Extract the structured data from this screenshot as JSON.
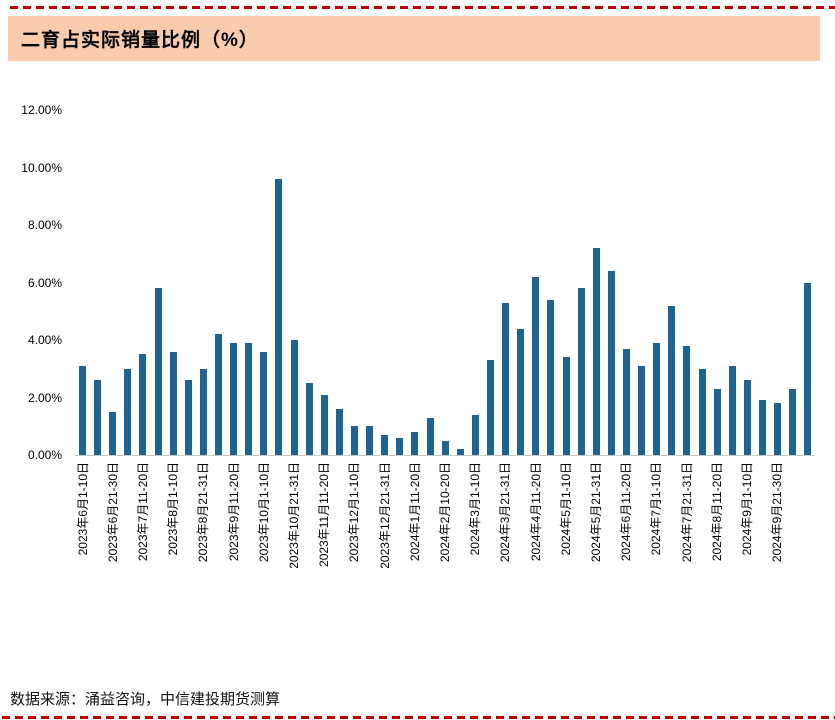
{
  "header": {
    "title": "二育占实际销量比例（%）"
  },
  "footer": {
    "source": "数据来源：涌益咨询，中信建投期货测算"
  },
  "colors": {
    "title_band": "#F8CBAD",
    "dashed_rule": "#C00000",
    "bar": "#1F6490"
  },
  "chart_data": {
    "type": "bar",
    "title": "二育占实际销量比例（%）",
    "xlabel": "",
    "ylabel": "",
    "y_unit": "percent",
    "ylim": [
      0,
      12
    ],
    "grid": false,
    "legend": false,
    "x_label_rotation_degrees": 90,
    "yticks": [
      {
        "value": 0,
        "label": "0.00%"
      },
      {
        "value": 2,
        "label": "2.00%"
      },
      {
        "value": 4,
        "label": "4.00%"
      },
      {
        "value": 6,
        "label": "6.00%"
      },
      {
        "value": 8,
        "label": "8.00%"
      },
      {
        "value": 10,
        "label": "10.00%"
      },
      {
        "value": 12,
        "label": "12.00%"
      }
    ],
    "x_labels": [
      "2023年6月1-10日",
      "",
      "2023年6月21-30日",
      "",
      "2023年7月11-20日",
      "",
      "2023年8月1-10日",
      "",
      "2023年8月21-31日",
      "",
      "2023年9月11-20日",
      "",
      "2023年10月1-10日",
      "",
      "2023年10月21-31日",
      "",
      "2023年11月11-20日",
      "",
      "2023年12月1-10日",
      "",
      "2023年12月21-31日",
      "",
      "2024年1月11-20日",
      "",
      "2024年2月10-20日",
      "",
      "2024年3月1-10日",
      "",
      "2024年3月21-31日",
      "",
      "2024年4月11-20日",
      "",
      "2024年5月1-10日",
      "",
      "2024年5月21-31日",
      "",
      "2024年6月11-20日",
      "",
      "2024年7月1-10日",
      "",
      "2024年7月21-31日",
      "",
      "2024年8月11-20日",
      "",
      "2024年9月1-10日",
      "",
      "2024年9月21-30日",
      "",
      ""
    ],
    "values": [
      3.1,
      2.6,
      1.5,
      3.0,
      3.5,
      5.8,
      3.6,
      2.6,
      3.0,
      4.2,
      3.9,
      3.9,
      3.6,
      9.6,
      4.0,
      2.5,
      2.1,
      1.6,
      1.0,
      1.0,
      0.7,
      0.6,
      0.8,
      1.3,
      0.5,
      0.2,
      1.4,
      3.3,
      5.3,
      4.4,
      6.2,
      5.4,
      3.4,
      5.8,
      7.2,
      6.4,
      3.7,
      3.1,
      3.9,
      5.2,
      3.8,
      3.0,
      2.3,
      3.1,
      2.6,
      1.9,
      1.8,
      2.3,
      6.0
    ]
  }
}
